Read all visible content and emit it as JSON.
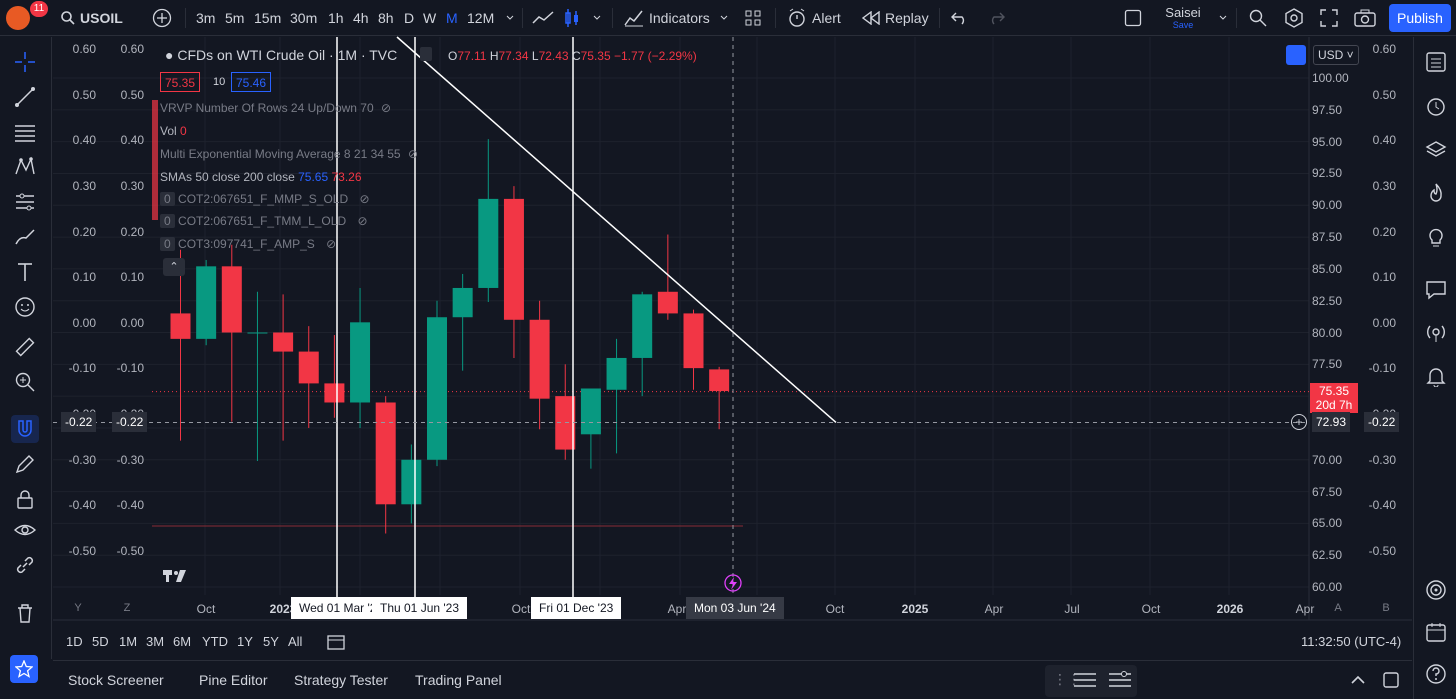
{
  "topbar": {
    "badge": "11",
    "symbol": "USOIL",
    "intervals": [
      "3m",
      "5m",
      "15m",
      "30m",
      "1h",
      "4h",
      "8h",
      "D",
      "W",
      "M",
      "12M"
    ],
    "active_interval": "M",
    "indicators": "Indicators",
    "alert": "Alert",
    "replay": "Replay",
    "profile_name": "Saisei",
    "profile_sub": "Save",
    "publish": "Publish"
  },
  "legend": {
    "title": "CFDs on WTI Crude Oil · 1M · TVC",
    "o_label": "O",
    "o": "77.11",
    "h_label": "H",
    "h": "77.34",
    "l_label": "L",
    "l": "72.43",
    "c_label": "C",
    "c": "75.35",
    "chg": "−1.77 (−2.29%)",
    "bid": "75.35",
    "spread": "10",
    "ask": "75.46",
    "studies": [
      "VRVP Number Of Rows 24 Up/Down 70",
      "Vol",
      "Multi Exponential Moving Average 8 21 34 55",
      "SMAs 50 close 200 close",
      "COT2:067651_F_MMP_S_OLD",
      "COT2:067651_F_TMM_L_OLD",
      "COT3:097741_F_AMP_S"
    ],
    "vol_value": "0",
    "sma_50": "75.65",
    "sma_200": "73.26",
    "cot_prefix": "0"
  },
  "colors": {
    "up": "#089981",
    "down": "#f23645",
    "accent": "#2962ff",
    "bg": "#131722"
  },
  "left_scale_outer": [
    "0.60",
    "0.50",
    "0.40",
    "0.30",
    "0.20",
    "0.10",
    "0.00",
    "-0.10",
    "-0.20",
    "-0.30",
    "-0.40",
    "-0.50"
  ],
  "left_scale_inner": [
    "0.60",
    "0.50",
    "0.40",
    "0.30",
    "0.20",
    "0.10",
    "0.00",
    "-0.10",
    "-0.20",
    "-0.30",
    "-0.40",
    "-0.50"
  ],
  "left_crosshair_outer": "-0.22",
  "left_crosshair_inner": "-0.22",
  "price_scale": [
    "100.00",
    "97.50",
    "95.00",
    "92.50",
    "90.00",
    "87.50",
    "85.00",
    "82.50",
    "80.00",
    "77.50",
    "75.00",
    "72.50",
    "70.00",
    "67.50",
    "65.00",
    "62.50",
    "60.00"
  ],
  "right_scale_outer": [
    "0.60",
    "0.50",
    "0.40",
    "0.30",
    "0.20",
    "0.10",
    "0.00",
    "-0.10",
    "-0.20",
    "-0.30",
    "-0.40",
    "-0.50"
  ],
  "currency": "USD",
  "last_price": {
    "price": "75.35",
    "countdown": "20d 7h"
  },
  "crosshair_price": "72.93",
  "right_crosshair": "-0.22",
  "x_labels": [
    "Oct",
    "2023",
    "Oct",
    "Apr",
    "Oct",
    "2025",
    "Apr",
    "Jul",
    "Oct",
    "2026",
    "Apr"
  ],
  "x_markers": [
    "Wed 01 Mar '23",
    "Thu 01 Jun '23",
    "Fri 01 Dec '23",
    "Mon 03 Jun '24"
  ],
  "scale_letters": [
    "Y",
    "Z",
    "A",
    "B"
  ],
  "ranges": [
    "1D",
    "5D",
    "1M",
    "3M",
    "6M",
    "YTD",
    "1Y",
    "5Y",
    "All"
  ],
  "clock": "11:32:50 (UTC-4)",
  "bottom_tabs": [
    "Stock Screener",
    "Pine Editor",
    "Strategy Tester",
    "Trading Panel"
  ],
  "chart_data": {
    "type": "candlestick",
    "candles": [
      {
        "o": 81.5,
        "h": 86.5,
        "l": 71.5,
        "c": 79.5
      },
      {
        "o": 79.5,
        "h": 85.7,
        "l": 79,
        "c": 85.2
      },
      {
        "o": 85.2,
        "h": 86.9,
        "l": 73,
        "c": 80
      },
      {
        "o": 80,
        "h": 83.2,
        "l": 69.9,
        "c": 80
      },
      {
        "o": 80,
        "h": 83,
        "l": 71.5,
        "c": 78.5
      },
      {
        "o": 78.5,
        "h": 80.5,
        "l": 72.5,
        "c": 76
      },
      {
        "o": 76,
        "h": 79.8,
        "l": 73.3,
        "c": 74.5
      },
      {
        "o": 74.5,
        "h": 83.5,
        "l": 72.5,
        "c": 80.8
      },
      {
        "o": 74.5,
        "h": 75,
        "l": 64.2,
        "c": 66.5
      },
      {
        "o": 66.5,
        "h": 71.2,
        "l": 65,
        "c": 70
      },
      {
        "o": 70,
        "h": 82.5,
        "l": 69.5,
        "c": 81.2
      },
      {
        "o": 81.2,
        "h": 84.6,
        "l": 77,
        "c": 83.5
      },
      {
        "o": 83.5,
        "h": 95.2,
        "l": 82.4,
        "c": 90.5
      },
      {
        "o": 90.5,
        "h": 91.5,
        "l": 78,
        "c": 81
      },
      {
        "o": 81,
        "h": 82.5,
        "l": 72.4,
        "c": 74.8
      },
      {
        "o": 75,
        "h": 77.5,
        "l": 70,
        "c": 70.8
      },
      {
        "o": 72,
        "h": 75.5,
        "l": 69.3,
        "c": 75.6
      },
      {
        "o": 75.5,
        "h": 79.5,
        "l": 70.5,
        "c": 78
      },
      {
        "o": 78,
        "h": 83.2,
        "l": 75,
        "c": 83
      },
      {
        "o": 83.2,
        "h": 87.7,
        "l": 81,
        "c": 81.5
      },
      {
        "o": 81.5,
        "h": 81.8,
        "l": 75.5,
        "c": 77.2
      },
      {
        "o": 77.1,
        "h": 77.3,
        "l": 72.4,
        "c": 75.4
      }
    ],
    "trendline": {
      "from": [
        105.2,
        0
      ],
      "to": [
        72.93,
        21
      ]
    },
    "ylim": [
      60,
      100
    ]
  }
}
